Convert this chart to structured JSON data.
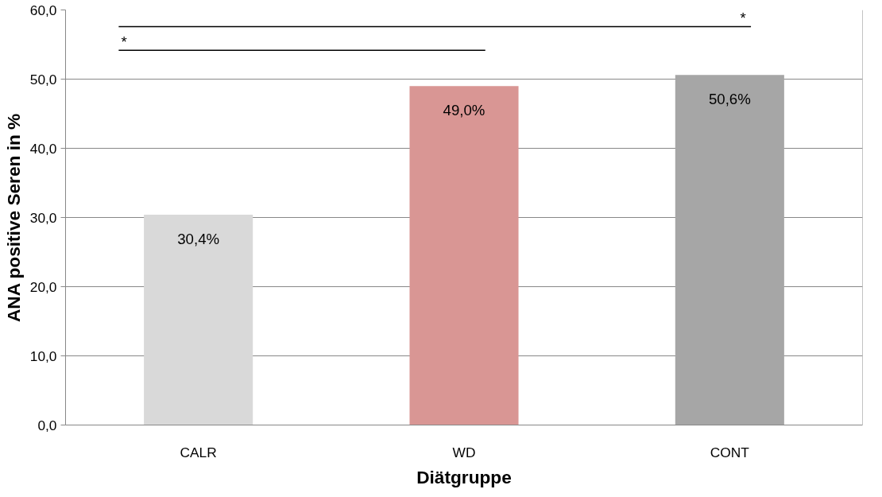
{
  "chart_data": {
    "type": "bar",
    "xlabel": "Diätgruppe",
    "ylabel": "ANA positive Seren in %",
    "categories": [
      "CALR",
      "WD",
      "CONT"
    ],
    "values": [
      30.4,
      49.0,
      50.6
    ],
    "colors": [
      "#d9d9d9",
      "#d99694",
      "#a6a6a6"
    ],
    "value_labels": [
      "30,4%",
      "49,0%",
      "50,6%"
    ],
    "ylim": [
      0,
      60
    ],
    "yticks": [
      {
        "value": 0,
        "label": "0,0"
      },
      {
        "value": 10,
        "label": "10,0"
      },
      {
        "value": 20,
        "label": "20,0"
      },
      {
        "value": 30,
        "label": "30,0"
      },
      {
        "value": 40,
        "label": "40,0"
      },
      {
        "value": 50,
        "label": "50,0"
      },
      {
        "value": 60,
        "label": "60,0"
      }
    ],
    "grid": "y",
    "annotations": [
      "*",
      "*"
    ]
  }
}
